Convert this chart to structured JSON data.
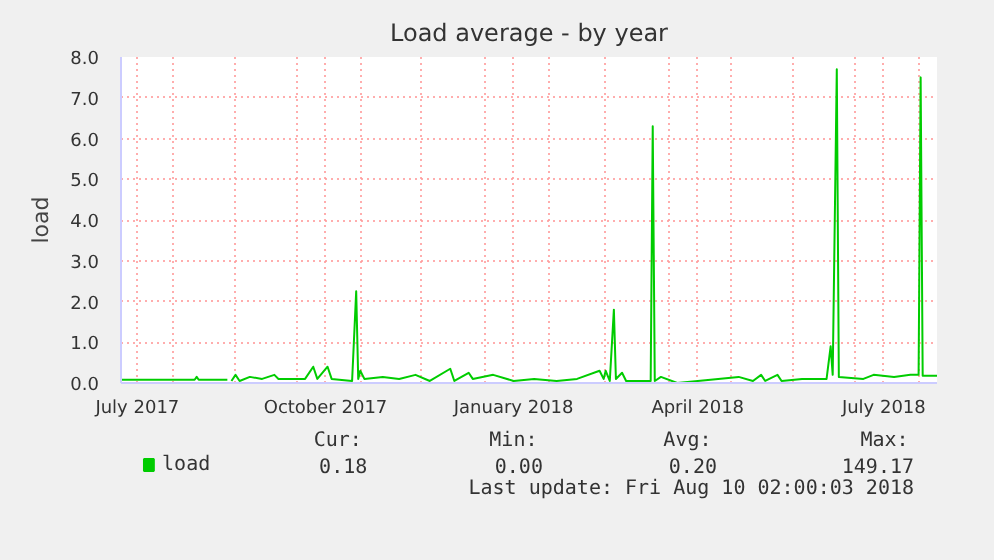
{
  "chart_data": {
    "type": "line",
    "title": "Load average - by year",
    "ylabel": "load",
    "x": [
      "2017-07-07",
      "2017-07-20",
      "2017-08-12",
      "2017-08-13",
      "2017-08-14",
      "2017-08-28",
      "2017-08-29",
      "2017-08-30",
      "2017-09-01",
      "2017-09-03",
      "2017-09-08",
      "2017-09-14",
      "2017-09-20",
      "2017-09-22",
      "2017-10-05",
      "2017-10-09",
      "2017-10-11",
      "2017-10-16",
      "2017-10-18",
      "2017-10-28",
      "2017-10-30",
      "2017-10-31",
      "2017-11-01",
      "2017-11-03",
      "2017-11-12",
      "2017-11-20",
      "2017-11-28",
      "2017-12-05",
      "2017-12-15",
      "2017-12-17",
      "2017-12-24",
      "2017-12-26",
      "2018-01-05",
      "2018-01-15",
      "2018-01-25",
      "2018-02-05",
      "2018-02-15",
      "2018-02-26",
      "2018-02-28",
      "2018-03-01",
      "2018-03-03",
      "2018-03-05",
      "2018-03-06",
      "2018-03-09",
      "2018-03-11",
      "2018-03-23",
      "2018-03-24",
      "2018-03-25",
      "2018-03-28",
      "2018-04-05",
      "2018-04-15",
      "2018-04-25",
      "2018-05-05",
      "2018-05-12",
      "2018-05-16",
      "2018-05-18",
      "2018-05-24",
      "2018-05-26",
      "2018-06-05",
      "2018-06-17",
      "2018-06-19",
      "2018-06-20",
      "2018-06-22",
      "2018-06-23",
      "2018-07-05",
      "2018-07-10",
      "2018-07-20",
      "2018-07-28",
      "2018-08-01",
      "2018-08-02",
      "2018-08-03",
      "2018-08-10"
    ],
    "series": [
      {
        "name": "load",
        "color": "#00cc00",
        "values": [
          0.08,
          0.08,
          0.08,
          0.15,
          0.08,
          0.08,
          null,
          0.05,
          0.2,
          0.05,
          0.15,
          0.1,
          0.2,
          0.1,
          0.1,
          0.4,
          0.1,
          0.4,
          0.1,
          0.05,
          2.25,
          0.1,
          0.3,
          0.1,
          0.15,
          0.1,
          0.2,
          0.05,
          0.35,
          0.05,
          0.25,
          0.1,
          0.2,
          0.05,
          0.1,
          0.05,
          0.1,
          0.3,
          0.1,
          0.3,
          0.05,
          1.8,
          0.1,
          0.25,
          0.05,
          0.05,
          6.3,
          0.05,
          0.15,
          0.0,
          0.05,
          0.1,
          0.15,
          0.05,
          0.2,
          0.05,
          0.2,
          0.05,
          0.1,
          0.1,
          0.9,
          0.2,
          7.7,
          0.15,
          0.1,
          0.2,
          0.15,
          0.2,
          0.2,
          7.5,
          0.18,
          0.18
        ]
      }
    ],
    "xlim": [
      "2017-07-07",
      "2018-08-10"
    ],
    "xticks": [
      {
        "value": "2017-07-15",
        "label": "July 2017"
      },
      {
        "value": "2017-08-01",
        "label": null
      },
      {
        "value": "2017-09-01",
        "label": null
      },
      {
        "value": "2017-10-01",
        "label": null
      },
      {
        "value": "2017-10-15",
        "label": "October 2017"
      },
      {
        "value": "2017-11-01",
        "label": null
      },
      {
        "value": "2017-12-01",
        "label": null
      },
      {
        "value": "2018-01-01",
        "label": null
      },
      {
        "value": "2018-01-15",
        "label": "January 2018"
      },
      {
        "value": "2018-02-01",
        "label": null
      },
      {
        "value": "2018-03-01",
        "label": null
      },
      {
        "value": "2018-04-01",
        "label": null
      },
      {
        "value": "2018-04-15",
        "label": "April 2018"
      },
      {
        "value": "2018-05-01",
        "label": null
      },
      {
        "value": "2018-06-01",
        "label": null
      },
      {
        "value": "2018-07-01",
        "label": null
      },
      {
        "value": "2018-07-15",
        "label": "July 2018"
      },
      {
        "value": "2018-08-01",
        "label": null
      }
    ],
    "ylim": [
      0,
      8
    ],
    "yticks": [
      {
        "value": 0,
        "label": "0.0"
      },
      {
        "value": 1,
        "label": "1.0"
      },
      {
        "value": 2,
        "label": "2.0"
      },
      {
        "value": 3,
        "label": "3.0"
      },
      {
        "value": 4,
        "label": "4.0"
      },
      {
        "value": 5,
        "label": "5.0"
      },
      {
        "value": 6,
        "label": "6.0"
      },
      {
        "value": 7,
        "label": "7.0"
      },
      {
        "value": 8,
        "label": "8.0"
      }
    ],
    "grid": true,
    "legend": "bottom left",
    "marker": "none",
    "line_style": "solid",
    "annotations": [
      "Cur:",
      "Min:",
      "Avg:",
      "Max:",
      "0.18",
      "0.00",
      "0.20",
      "149.17",
      "Last update: Fri Aug 10 02:00:03 2018"
    ]
  }
}
